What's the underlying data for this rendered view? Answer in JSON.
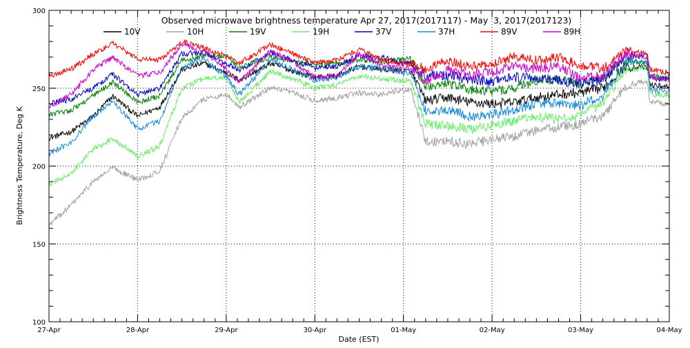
{
  "chart_data": {
    "type": "line",
    "title": "Observed microwave brightness temperature Apr 27, 2017(2017117) - May  3, 2017(2017123)",
    "xlabel": "Date (EST)",
    "ylabel": "Brightness Temperature, Deg K",
    "xlim": [
      0,
      7
    ],
    "ylim": [
      100,
      300
    ],
    "x_ticks": [
      {
        "value": 0,
        "label": "27-Apr"
      },
      {
        "value": 1,
        "label": "28-Apr"
      },
      {
        "value": 2,
        "label": "29-Apr"
      },
      {
        "value": 3,
        "label": "30-Apr"
      },
      {
        "value": 4,
        "label": "01-May"
      },
      {
        "value": 5,
        "label": "02-May"
      },
      {
        "value": 6,
        "label": "03-May"
      },
      {
        "value": 7,
        "label": "04-May"
      }
    ],
    "y_ticks": [
      100,
      150,
      200,
      250,
      300
    ],
    "grid": true,
    "legend_position": "top",
    "x": [
      0,
      0.25,
      0.5,
      0.72,
      1.0,
      1.25,
      1.5,
      1.75,
      2.0,
      2.15,
      2.5,
      2.75,
      3.0,
      3.25,
      3.5,
      3.75,
      4.0,
      4.08,
      4.25,
      4.5,
      4.75,
      5.0,
      5.25,
      5.5,
      5.75,
      6.0,
      6.25,
      6.5,
      6.75,
      6.78,
      7.0
    ],
    "series": [
      {
        "name": "10V",
        "color": "#000000",
        "values": [
          218,
          222,
          232,
          245,
          232,
          238,
          262,
          266,
          260,
          255,
          266,
          261,
          257,
          258,
          264,
          262,
          261,
          261,
          242,
          244,
          241,
          240,
          241,
          244,
          246,
          247,
          250,
          264,
          263,
          252,
          251
        ]
      },
      {
        "name": "10H",
        "color": "#a0a0a0",
        "values": [
          162,
          175,
          190,
          199,
          191,
          197,
          231,
          243,
          246,
          238,
          250,
          247,
          242,
          244,
          247,
          246,
          249,
          249,
          216,
          216,
          214,
          217,
          219,
          223,
          225,
          227,
          232,
          251,
          255,
          241,
          240
        ]
      },
      {
        "name": "19V",
        "color": "#008000",
        "values": [
          233,
          236,
          245,
          254,
          241,
          245,
          268,
          271,
          271,
          263,
          270,
          267,
          265,
          266,
          268,
          267,
          269,
          269,
          251,
          253,
          249,
          248,
          250,
          255,
          255,
          253,
          257,
          268,
          266,
          258,
          257
        ]
      },
      {
        "name": "19H",
        "color": "#66ee66",
        "values": [
          188,
          195,
          211,
          218,
          206,
          213,
          250,
          256,
          257,
          241,
          261,
          256,
          250,
          252,
          258,
          256,
          255,
          255,
          227,
          226,
          224,
          226,
          229,
          232,
          230,
          233,
          240,
          262,
          263,
          246,
          245
        ]
      },
      {
        "name": "37V",
        "color": "#0000cc",
        "values": [
          240,
          243,
          250,
          259,
          246,
          250,
          272,
          273,
          266,
          261,
          273,
          268,
          263,
          264,
          271,
          270,
          266,
          266,
          258,
          258,
          256,
          254,
          257,
          257,
          255,
          253,
          255,
          270,
          271,
          256,
          256
        ]
      },
      {
        "name": "37H",
        "color": "#1188dd",
        "values": [
          208,
          215,
          232,
          242,
          224,
          229,
          264,
          269,
          257,
          246,
          268,
          262,
          255,
          257,
          264,
          263,
          260,
          260,
          235,
          236,
          232,
          233,
          236,
          240,
          240,
          239,
          245,
          266,
          267,
          249,
          248
        ]
      },
      {
        "name": "89V",
        "color": "#ff0000",
        "values": [
          258,
          262,
          272,
          279,
          269,
          268,
          280,
          276,
          270,
          266,
          278,
          272,
          266,
          268,
          275,
          268,
          266,
          266,
          262,
          268,
          264,
          266,
          270,
          268,
          270,
          264,
          263,
          274,
          272,
          262,
          260
        ]
      },
      {
        "name": "89H",
        "color": "#cc00cc",
        "values": [
          238,
          246,
          262,
          270,
          258,
          260,
          278,
          274,
          262,
          254,
          274,
          267,
          257,
          258,
          272,
          265,
          263,
          263,
          255,
          262,
          258,
          260,
          264,
          262,
          264,
          256,
          258,
          272,
          270,
          258,
          255
        ]
      }
    ]
  }
}
